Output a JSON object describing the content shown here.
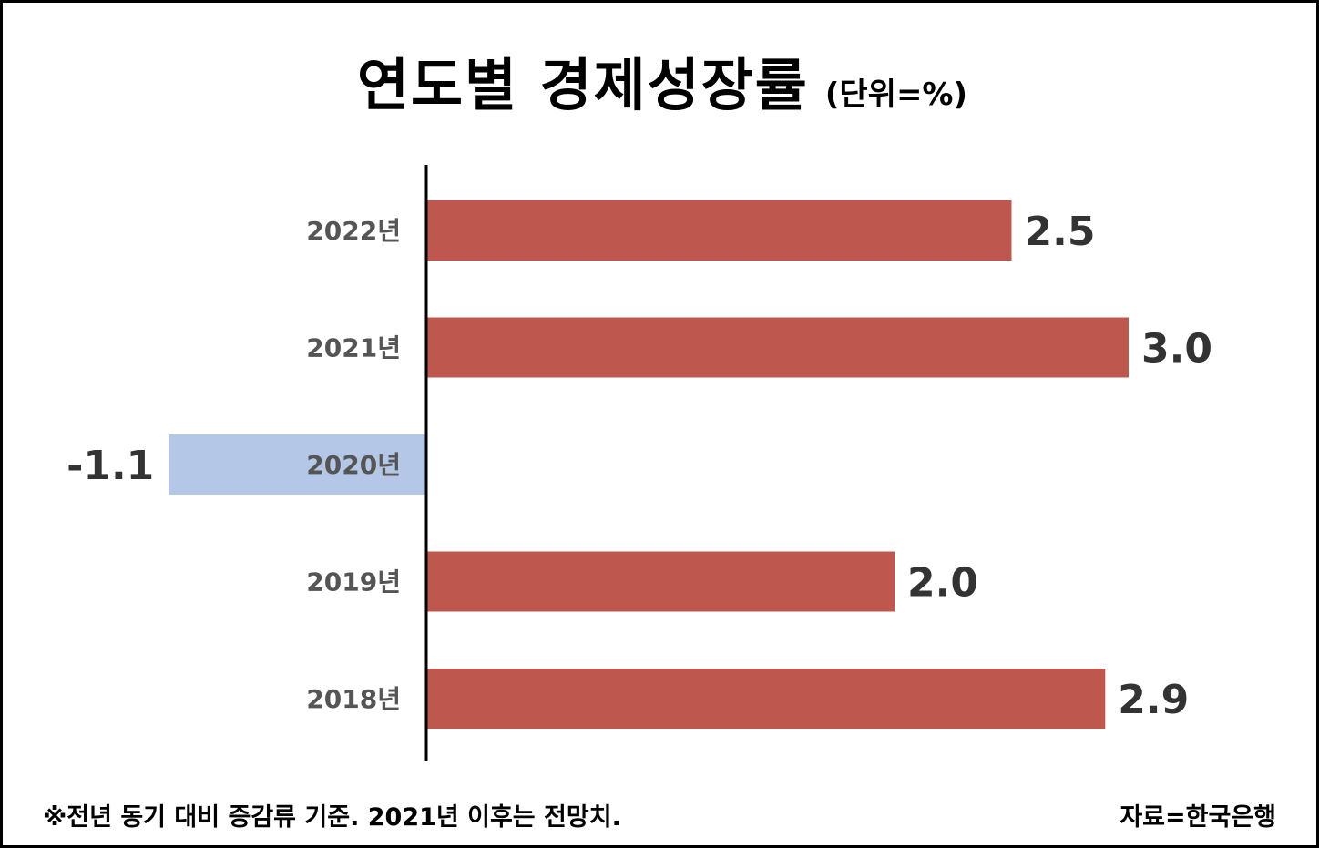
{
  "chart_data": {
    "type": "bar",
    "orientation": "horizontal",
    "title": "연도별 경제성장률",
    "unit": "(단위=%)",
    "categories": [
      "2022년",
      "2021년",
      "2020년",
      "2019년",
      "2018년"
    ],
    "values": [
      2.5,
      3.0,
      -1.1,
      2.0,
      2.9
    ],
    "value_labels": [
      "2.5",
      "3.0",
      "-1.1",
      "2.0",
      "2.9"
    ],
    "xlim": [
      -1.1,
      3.0
    ],
    "grid": false,
    "legend": "none"
  },
  "colors": {
    "positive_bar": "#BE584F",
    "negative_bar": "#B4C7E7",
    "axis": "#000000",
    "tick_text": "#555555",
    "value_text": "#333333"
  },
  "footnote": "※전년 동기 대비 증감류 기준. 2021년 이후는 전망치.",
  "source": "자료=한국은행"
}
